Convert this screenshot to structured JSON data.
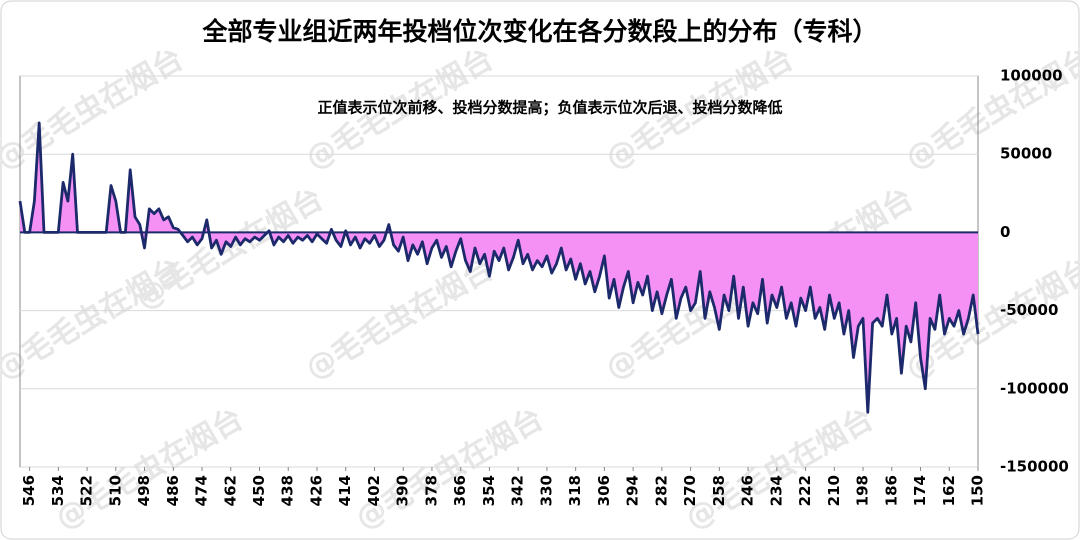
{
  "chart_data": {
    "type": "area",
    "title": "全部专业组近两年投档位次变化在各分数段上的分布（专科）",
    "annotation": "正值表示位次前移、投档分数提高；负值表示位次后退、投档分数降低",
    "watermark": "@毛毛虫在烟台",
    "color": "#1c2a6b",
    "fill_color": "#f590f5",
    "grid": true,
    "y_axis_side": "right",
    "xlim": [
      550,
      150
    ],
    "ylim": [
      -150000,
      100000
    ],
    "yticks": [
      -150000,
      -100000,
      -50000,
      0,
      50000,
      100000
    ],
    "xticks": [
      546,
      534,
      522,
      510,
      498,
      486,
      474,
      462,
      450,
      438,
      426,
      414,
      402,
      390,
      378,
      366,
      354,
      342,
      330,
      318,
      306,
      294,
      282,
      270,
      258,
      246,
      234,
      222,
      210,
      198,
      186,
      174,
      162,
      150
    ],
    "x": [
      550,
      548,
      546,
      544,
      542,
      540,
      538,
      536,
      534,
      532,
      530,
      528,
      526,
      524,
      522,
      520,
      518,
      516,
      514,
      512,
      510,
      508,
      506,
      504,
      502,
      500,
      498,
      496,
      494,
      492,
      490,
      488,
      486,
      484,
      482,
      480,
      478,
      476,
      474,
      472,
      470,
      468,
      466,
      464,
      462,
      460,
      458,
      456,
      454,
      452,
      450,
      448,
      446,
      444,
      442,
      440,
      438,
      436,
      434,
      432,
      430,
      428,
      426,
      424,
      422,
      420,
      418,
      416,
      414,
      412,
      410,
      408,
      406,
      404,
      402,
      400,
      398,
      396,
      394,
      392,
      390,
      388,
      386,
      384,
      382,
      380,
      378,
      376,
      374,
      372,
      370,
      368,
      366,
      364,
      362,
      360,
      358,
      356,
      354,
      352,
      350,
      348,
      346,
      344,
      342,
      340,
      338,
      336,
      334,
      332,
      330,
      328,
      326,
      324,
      322,
      320,
      318,
      316,
      314,
      312,
      310,
      308,
      306,
      304,
      302,
      300,
      298,
      296,
      294,
      292,
      290,
      288,
      286,
      284,
      282,
      280,
      278,
      276,
      274,
      272,
      270,
      268,
      266,
      264,
      262,
      260,
      258,
      256,
      254,
      252,
      250,
      248,
      246,
      244,
      242,
      240,
      238,
      236,
      234,
      232,
      230,
      228,
      226,
      224,
      222,
      220,
      218,
      216,
      214,
      212,
      210,
      208,
      206,
      204,
      202,
      200,
      198,
      196,
      194,
      192,
      190,
      188,
      186,
      184,
      182,
      180,
      178,
      176,
      174,
      172,
      170,
      168,
      166,
      164,
      162,
      160,
      158,
      156,
      154,
      152,
      150
    ],
    "values": [
      20000,
      0,
      0,
      20000,
      70000,
      0,
      0,
      0,
      0,
      32000,
      20000,
      50000,
      0,
      0,
      0,
      0,
      0,
      0,
      0,
      30000,
      20000,
      0,
      0,
      40000,
      10000,
      5000,
      -10000,
      15000,
      12000,
      15000,
      8000,
      10000,
      3000,
      2000,
      -2000,
      -6000,
      -3000,
      -8000,
      -4000,
      8000,
      -10000,
      -5000,
      -14000,
      -6000,
      -9000,
      -3000,
      -8000,
      -4000,
      -6000,
      -3000,
      -5000,
      -2000,
      1000,
      -8000,
      -3000,
      -6000,
      -2000,
      -7000,
      -3000,
      -5000,
      -2000,
      -6000,
      -1000,
      -4000,
      -7000,
      2000,
      -5000,
      -9000,
      1000,
      -8000,
      -3000,
      -10000,
      -4000,
      -7000,
      -2000,
      -9000,
      -5000,
      5000,
      -8000,
      -12000,
      -3000,
      -18000,
      -8000,
      -14000,
      -6000,
      -20000,
      -10000,
      -5000,
      -16000,
      -9000,
      -22000,
      -12000,
      -4000,
      -18000,
      -25000,
      -10000,
      -20000,
      -14000,
      -28000,
      -12000,
      -18000,
      -10000,
      -24000,
      -16000,
      -5000,
      -20000,
      -14000,
      -24000,
      -18000,
      -22000,
      -15000,
      -26000,
      -20000,
      -10000,
      -24000,
      -17000,
      -30000,
      -20000,
      -33000,
      -25000,
      -38000,
      -28000,
      -15000,
      -42000,
      -30000,
      -48000,
      -35000,
      -25000,
      -45000,
      -32000,
      -40000,
      -28000,
      -50000,
      -38000,
      -52000,
      -40000,
      -30000,
      -55000,
      -42000,
      -35000,
      -50000,
      -45000,
      -25000,
      -55000,
      -38000,
      -48000,
      -62000,
      -40000,
      -50000,
      -28000,
      -55000,
      -35000,
      -60000,
      -45000,
      -52000,
      -30000,
      -58000,
      -40000,
      -48000,
      -35000,
      -55000,
      -45000,
      -60000,
      -42000,
      -50000,
      -35000,
      -55000,
      -48000,
      -62000,
      -40000,
      -55000,
      -45000,
      -65000,
      -50000,
      -80000,
      -60000,
      -55000,
      -115000,
      -58000,
      -55000,
      -60000,
      -40000,
      -65000,
      -55000,
      -90000,
      -60000,
      -70000,
      -45000,
      -80000,
      -100000,
      -55000,
      -62000,
      -40000,
      -65000,
      -55000,
      -60000,
      -50000,
      -65000,
      -55000,
      -40000,
      -65000
    ]
  }
}
